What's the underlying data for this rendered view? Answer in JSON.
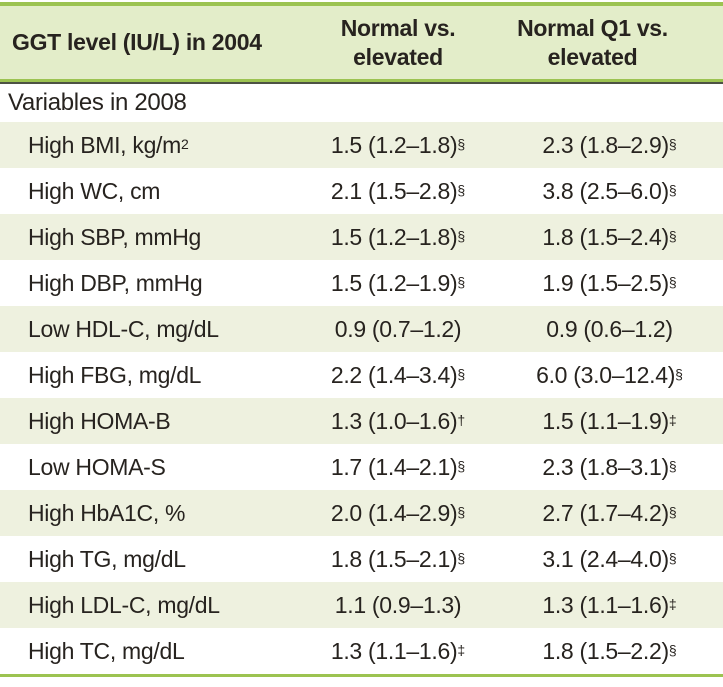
{
  "colors": {
    "accent_green": "#9cc351",
    "header_bg": "#e3edc9",
    "row_alt_bg": "#eef1df",
    "dark_line": "#4d5244",
    "text": "#27231f"
  },
  "table": {
    "header": {
      "col1": "GGT level (IU/L) in 2004",
      "col2": "Normal vs. elevated",
      "col3": "Normal Q1 vs. elevated"
    },
    "section": "Variables in 2008",
    "rows": [
      {
        "label": "High BMI, kg/m",
        "label_sup": "2",
        "normal": "1.5 (1.2–1.8)",
        "normal_sup": "§",
        "q1": "2.3 (1.8–2.9)",
        "q1_sup": "§"
      },
      {
        "label": "High WC, cm",
        "label_sup": "",
        "normal": "2.1 (1.5–2.8)",
        "normal_sup": "§",
        "q1": "3.8 (2.5–6.0)",
        "q1_sup": "§"
      },
      {
        "label": "High SBP, mmHg",
        "label_sup": "",
        "normal": "1.5 (1.2–1.8)",
        "normal_sup": "§",
        "q1": "1.8 (1.5–2.4)",
        "q1_sup": "§"
      },
      {
        "label": "High DBP, mmHg",
        "label_sup": "",
        "normal": "1.5 (1.2–1.9)",
        "normal_sup": "§",
        "q1": "1.9 (1.5–2.5)",
        "q1_sup": "§"
      },
      {
        "label": "Low HDL-C, mg/dL",
        "label_sup": "",
        "normal": "0.9 (0.7–1.2)",
        "normal_sup": "",
        "q1": "0.9 (0.6–1.2)",
        "q1_sup": ""
      },
      {
        "label": "High FBG, mg/dL",
        "label_sup": "",
        "normal": "2.2 (1.4–3.4)",
        "normal_sup": "§",
        "q1": "6.0 (3.0–12.4)",
        "q1_sup": "§"
      },
      {
        "label": "High HOMA-B",
        "label_sup": "",
        "normal": "1.3 (1.0–1.6)",
        "normal_sup": "†",
        "q1": "1.5 (1.1–1.9)",
        "q1_sup": "‡"
      },
      {
        "label": "Low HOMA-S",
        "label_sup": "",
        "normal": "1.7 (1.4–2.1)",
        "normal_sup": "§",
        "q1": "2.3 (1.8–3.1)",
        "q1_sup": "§"
      },
      {
        "label": "High HbA1C, %",
        "label_sup": "",
        "normal": "2.0 (1.4–2.9)",
        "normal_sup": "§",
        "q1": "2.7 (1.7–4.2)",
        "q1_sup": "§"
      },
      {
        "label": "High TG, mg/dL",
        "label_sup": "",
        "normal": "1.8 (1.5–2.1)",
        "normal_sup": "§",
        "q1": "3.1 (2.4–4.0)",
        "q1_sup": "§"
      },
      {
        "label": "High LDL-C, mg/dL",
        "label_sup": "",
        "normal": "1.1 (0.9–1.3)",
        "normal_sup": "",
        "q1": "1.3 (1.1–1.6)",
        "q1_sup": "‡"
      },
      {
        "label": "High TC, mg/dL",
        "label_sup": "",
        "normal": "1.3 (1.1–1.6)",
        "normal_sup": "‡",
        "q1": "1.8 (1.5–2.2)",
        "q1_sup": "§"
      }
    ]
  }
}
